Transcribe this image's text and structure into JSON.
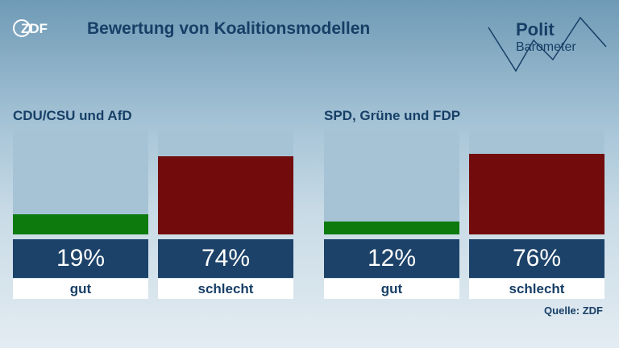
{
  "header": {
    "logo_text": "ZDF",
    "title": "Bewertung von Koalitionsmodellen",
    "brand_line1": "Polit",
    "brand_line2": "Barometer"
  },
  "source": "Quelle: ZDF",
  "colors": {
    "good": "#0c7a0c",
    "bad": "#720c0c",
    "panel_bg": "#a6c3d6",
    "value_bg": "#1c4269",
    "text": "#173f66"
  },
  "chart_data": {
    "type": "bar",
    "ylim": [
      0,
      100
    ],
    "groups": [
      {
        "title": "CDU/CSU und AfD",
        "bars": [
          {
            "category": "gut",
            "value": 19,
            "value_label": "19%"
          },
          {
            "category": "schlecht",
            "value": 74,
            "value_label": "74%"
          }
        ]
      },
      {
        "title": "SPD, Grüne und FDP",
        "bars": [
          {
            "category": "gut",
            "value": 12,
            "value_label": "12%"
          },
          {
            "category": "schlecht",
            "value": 76,
            "value_label": "76%"
          }
        ]
      }
    ]
  }
}
